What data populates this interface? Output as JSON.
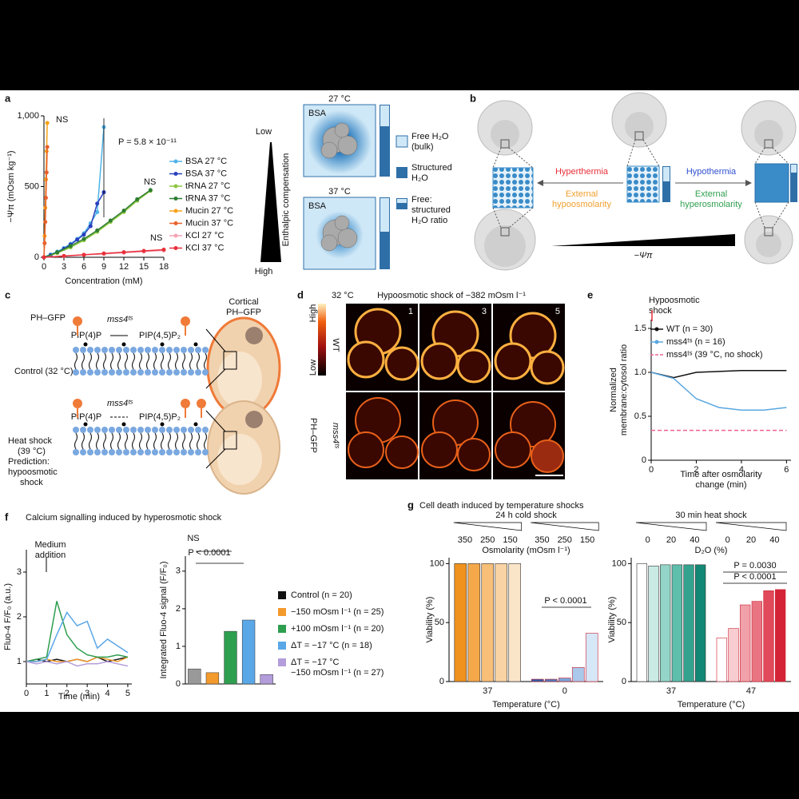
{
  "figure": {
    "panel_labels": [
      "a",
      "b",
      "c",
      "d",
      "e",
      "f",
      "g"
    ],
    "a": {
      "low": "Low",
      "high": "High",
      "gradient": "Enthalpic compensation",
      "temp_1": "27 °C",
      "temp_2": "37 °C",
      "protein": "BSA",
      "legend": [
        [
          "Free H₂O",
          "(bulk)"
        ],
        [
          "Structured",
          "H₂O"
        ],
        [
          "Free:",
          "structured",
          "H₂O ratio"
        ]
      ]
    },
    "b": {
      "left_cause": "Hyperthermia",
      "left_equiv": [
        "External",
        "hypoosmolarity"
      ],
      "right_cause": "Hypothermia",
      "right_equiv": [
        "External",
        "hyperosmolarity"
      ],
      "axis": "−Ψπ"
    },
    "c": {
      "probe": "PH–GFP",
      "substrate": "PIP(4)P",
      "product": "PIP(4,5)P₂",
      "enzyme": "mss4ᵗˢ",
      "control": "Control (32 °C)",
      "cortical": [
        "Cortical",
        "PH–GFP"
      ],
      "heat": [
        "Heat shock",
        "(39 °C)",
        "Prediction:",
        "hypoosmotic",
        "shock"
      ]
    },
    "d": {
      "temperature": "32 °C",
      "condition": "Hypoosmotic shock of −382 mOsm l⁻¹",
      "times": [
        1,
        3,
        5
      ],
      "rows": [
        "WT",
        "mss4ᵗˢ"
      ],
      "probe": "PH–GFP",
      "scale": [
        "Low",
        "High"
      ]
    },
    "f": {
      "title": "Calcium signalling induced by hyperosmotic shock"
    },
    "g": {
      "title": "Cell death induced by temperature shocks"
    }
  },
  "chart_data": [
    {
      "type": "line",
      "markers": true,
      "xlabel": "Concentration (mM)",
      "ylabel": "−Ψπ (mOsm kg⁻¹)",
      "xlim": [
        0,
        18
      ],
      "xticks": [
        0,
        3,
        6,
        9,
        12,
        15,
        18
      ],
      "ylim": [
        0,
        1000
      ],
      "yticks": [
        0,
        500,
        {
          "value": 1000,
          "label": "1,000"
        }
      ],
      "series": [
        {
          "name": "BSA 27 °C",
          "color": "#4fb3e8",
          "x": [
            0,
            1,
            2,
            3,
            4,
            5,
            6,
            7,
            8,
            9
          ],
          "values": [
            0,
            20,
            40,
            65,
            95,
            130,
            170,
            240,
            320,
            920
          ]
        },
        {
          "name": "BSA 37 °C",
          "color": "#2a3fbf",
          "x": [
            0,
            1,
            2,
            3,
            4,
            5,
            6,
            7,
            8,
            9
          ],
          "values": [
            0,
            15,
            35,
            60,
            90,
            125,
            160,
            220,
            380,
            460
          ]
        },
        {
          "name": "tRNA 27 °C",
          "color": "#8dc63f",
          "x": [
            0,
            2,
            4,
            6,
            8,
            10,
            12,
            14,
            16
          ],
          "values": [
            0,
            30,
            70,
            120,
            180,
            250,
            320,
            400,
            470
          ]
        },
        {
          "name": "tRNA 37 °C",
          "color": "#2e7d32",
          "x": [
            0,
            2,
            4,
            6,
            8,
            10,
            12,
            14,
            16
          ],
          "values": [
            0,
            35,
            80,
            130,
            190,
            260,
            330,
            410,
            475
          ]
        },
        {
          "name": "Mucin 27 °C",
          "color": "#f7a21b",
          "x": [
            0,
            0.1,
            0.2,
            0.3,
            0.4,
            0.5
          ],
          "values": [
            0,
            150,
            350,
            550,
            750,
            950
          ]
        },
        {
          "name": "Mucin 37 °C",
          "color": "#e8612c",
          "x": [
            0,
            0.1,
            0.2,
            0.3,
            0.4,
            0.5
          ],
          "values": [
            0,
            100,
            250,
            420,
            600,
            780
          ]
        },
        {
          "name": "KCl 27 °C",
          "color": "#f5a3b5",
          "x": [
            0,
            3,
            6,
            9,
            12,
            15,
            18
          ],
          "values": [
            0,
            8,
            16,
            24,
            32,
            40,
            48
          ]
        },
        {
          "name": "KCl 37 °C",
          "color": "#e8303a",
          "x": [
            0,
            3,
            6,
            9,
            12,
            15,
            18
          ],
          "values": [
            0,
            9,
            18,
            27,
            36,
            45,
            54
          ]
        }
      ],
      "annotations": [
        "NS",
        "NS",
        "NS",
        "P = 5.8 × 10⁻¹¹"
      ]
    },
    {
      "type": "line",
      "markers": false,
      "xlabel": [
        "Time after osmolarity",
        "change (min)"
      ],
      "ylabel": [
        "Normalized",
        "membrane:cytosol ratio"
      ],
      "xlim": [
        0,
        6.2
      ],
      "xticks": [
        0,
        2,
        4,
        6
      ],
      "ylim": [
        0,
        1.6
      ],
      "yticks": [
        0,
        0.5,
        {
          "value": 1,
          "label": "1.0"
        },
        1.5
      ],
      "series": [
        {
          "name": "WT (n = 30)",
          "color": "#111111",
          "x": [
            0,
            1,
            2,
            3,
            4,
            5,
            6
          ],
          "values": [
            1,
            0.94,
            1,
            1.01,
            1.02,
            1.02,
            1.02
          ]
        },
        {
          "name": "mss4ᵗˢ (n = 16)",
          "color": "#5aa7e0",
          "x": [
            0,
            1,
            2,
            3,
            4,
            5,
            6
          ],
          "values": [
            1,
            0.93,
            0.7,
            0.6,
            0.57,
            0.57,
            0.6
          ]
        },
        {
          "name": "mss4ᵗˢ (39 °C, no shock)",
          "color": "#f06292",
          "dashed": true,
          "x": [
            0,
            6
          ],
          "values": [
            0.34,
            0.34
          ]
        }
      ],
      "annotations": [
        [
          "Hypoosmotic",
          "shock"
        ]
      ]
    },
    {
      "type": "line",
      "markers": false,
      "xlabel": "Time (min)",
      "ylabel": "Fluo-4 F/F₀ (a.u.)",
      "xlim": [
        0,
        5.2
      ],
      "xticks": [
        0,
        1,
        2,
        3,
        4,
        5
      ],
      "ylim": [
        0.5,
        3.5
      ],
      "yticks": [
        1,
        2,
        3
      ],
      "series": [
        {
          "color": "#111111",
          "x": [
            0,
            0.5,
            1,
            1.5,
            2,
            2.5,
            3,
            3.5,
            4,
            4.5,
            5
          ],
          "values": [
            1,
            1.05,
            1,
            1.05,
            1,
            1.05,
            1,
            1.1,
            1,
            1.05,
            1.1
          ]
        },
        {
          "color": "#f39a2c",
          "x": [
            0,
            0.5,
            1,
            1.5,
            2,
            2.5,
            3,
            3.5,
            4,
            4.5,
            5
          ],
          "values": [
            1,
            1,
            1.05,
            1,
            1,
            1.05,
            1,
            1.1,
            1.05,
            1,
            1.1
          ]
        },
        {
          "color": "#2e9e4f",
          "x": [
            0,
            0.5,
            1,
            1.5,
            2,
            2.5,
            3,
            3.5,
            4,
            4.5,
            5
          ],
          "values": [
            1,
            1.05,
            1.1,
            2.35,
            1.6,
            1.3,
            1.15,
            1.1,
            1.1,
            1.15,
            1.1
          ]
        },
        {
          "color": "#5aa7e8",
          "x": [
            0,
            0.5,
            1,
            1.5,
            2,
            2.5,
            3,
            3.5,
            4,
            4.5,
            5
          ],
          "values": [
            1,
            1,
            1.05,
            1.6,
            2.1,
            1.8,
            1.9,
            1.3,
            1.5,
            1.35,
            1.2
          ]
        },
        {
          "color": "#b39ddb",
          "x": [
            0,
            0.5,
            1,
            1.5,
            2,
            2.5,
            3,
            3.5,
            4,
            4.5,
            5
          ],
          "values": [
            1,
            0.95,
            1,
            0.95,
            1,
            0.9,
            0.95,
            0.95,
            1,
            0.95,
            0.9
          ]
        }
      ],
      "annotations": [
        [
          "Medium",
          "addition"
        ]
      ]
    },
    {
      "type": "bar",
      "ylabel": "Integrated Fluo-4 signal (F/F₀)",
      "ylim": [
        0,
        3.4
      ],
      "yticks": [
        0,
        1,
        2,
        3
      ],
      "categories": [
        null,
        null,
        null,
        null,
        null
      ],
      "values": [
        0.4,
        0.3,
        1.4,
        1.7,
        0.25
      ],
      "colors": [
        "#999999",
        "#f39a2c",
        "#2e9e4f",
        "#5aa7e8",
        "#b39ddb"
      ],
      "legend_colors": [
        "#111111",
        "#f39a2c",
        "#2e9e4f",
        "#5aa7e8",
        "#b39ddb"
      ],
      "legend": [
        "Control (n = 20)",
        "−150 mOsm l⁻¹ (n = 25)",
        "+100 mOsm l⁻¹ (n = 20)",
        "ΔT = −17 °C (n = 18)",
        [
          "ΔT = −17 °C",
          "−150 mOsm l⁻¹ (n = 27)"
        ]
      ],
      "annotations": [
        "NS",
        "P < 0.0001"
      ]
    },
    {
      "type": "grouped_bar",
      "xlabel": "Temperature (°C)",
      "ylabel": "Viability (%)",
      "ylim": [
        0,
        105
      ],
      "yticks": [
        0,
        50,
        100
      ],
      "top_title": "24 h cold shock",
      "top_ticks": [
        350,
        250,
        150
      ],
      "top_label": "Osmolarity (mOsm l⁻¹)",
      "groups": [
        {
          "category": "37",
          "values": [
            100,
            100,
            100,
            100,
            100
          ],
          "colors": [
            "#f0921e",
            "#f5a84a",
            "#f7bf78",
            "#f9d3a3",
            "#fbe5c9"
          ]
        },
        {
          "category": "0",
          "values": [
            2,
            2,
            3,
            12,
            41
          ],
          "colors": [
            "#2a5ea8",
            "#4a7cc0",
            "#7aa5d8",
            "#a9c8ea",
            "#d6e7f7"
          ]
        }
      ],
      "annotations": [
        "P < 0.0001"
      ]
    },
    {
      "type": "grouped_bar",
      "xlabel": "Temperature (°C)",
      "ylabel": "Viability (%)",
      "ylim": [
        0,
        105
      ],
      "yticks": [
        0,
        50,
        100
      ],
      "top_title": "30 min heat shock",
      "top_ticks": [
        0,
        20,
        40
      ],
      "top_label": "D₂O (%)",
      "groups": [
        {
          "category": "37",
          "values": [
            100,
            98,
            99,
            99,
            99,
            99
          ],
          "colors": [
            "#ffffff",
            "#c9ebe4",
            "#93d5c8",
            "#5dbfac",
            "#33a38f",
            "#138775"
          ]
        },
        {
          "category": "47",
          "values": [
            37,
            45,
            65,
            68,
            77,
            78
          ],
          "colors": [
            "#ffffff",
            "#f7cdd1",
            "#f0a1a9",
            "#e87581",
            "#e04a5a",
            "#d42236"
          ]
        }
      ],
      "annotations": [
        "P = 0.0030",
        "P < 0.0001"
      ]
    }
  ]
}
